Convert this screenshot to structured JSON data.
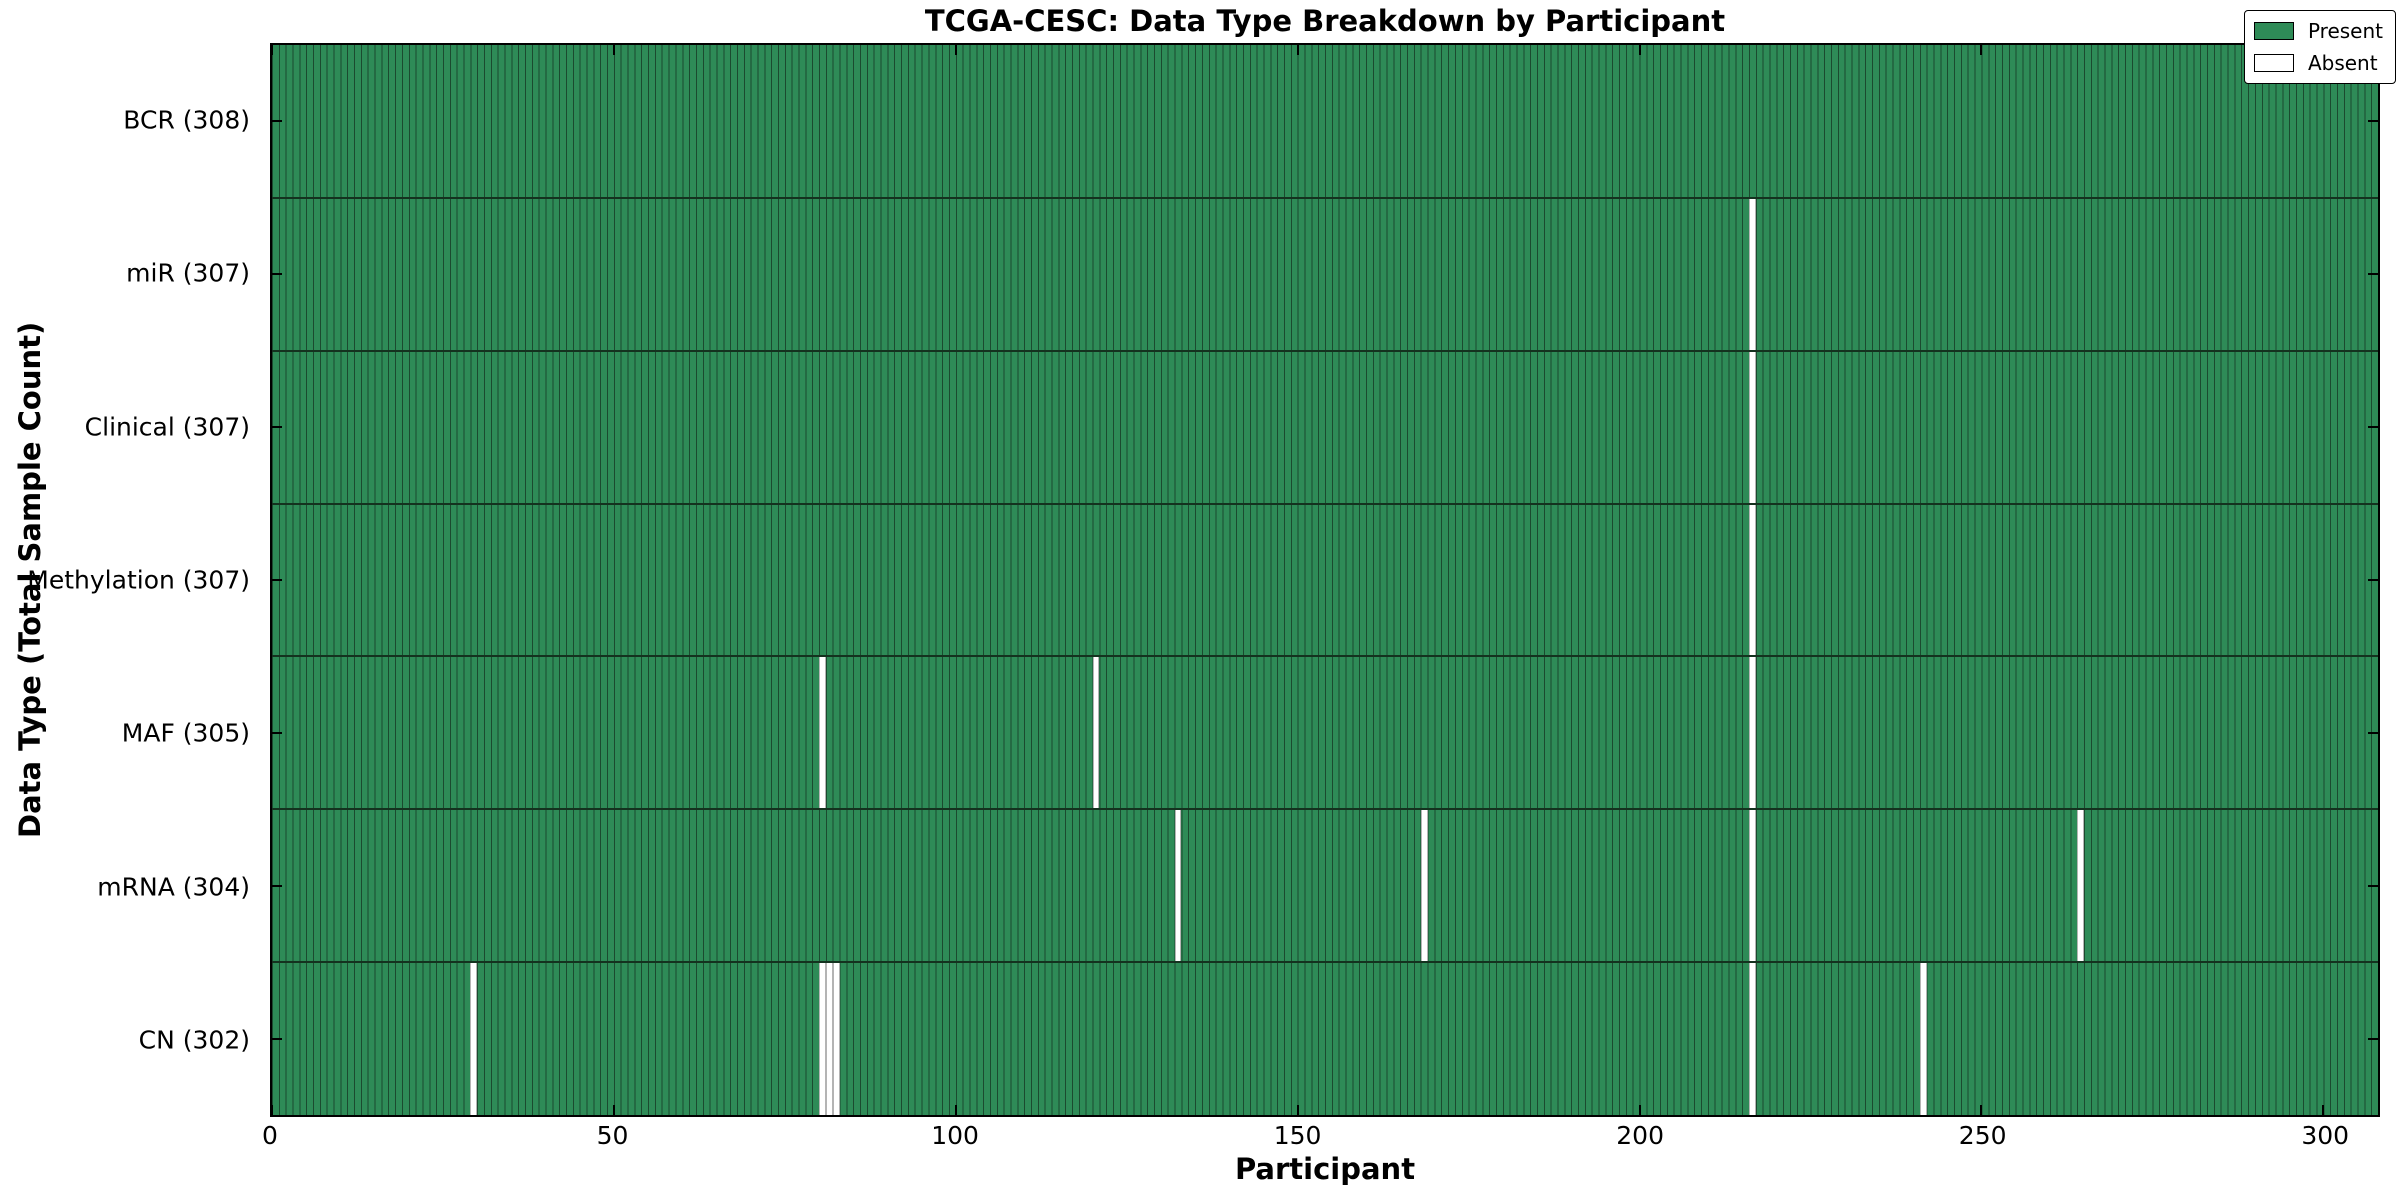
{
  "chart_data": {
    "type": "heatmap",
    "title": "TCGA-CESC: Data Type Breakdown by Participant",
    "xlabel": "Participant",
    "ylabel": "Data Type (Total Sample Count)",
    "x_ticks": [
      0,
      50,
      100,
      150,
      200,
      250,
      300
    ],
    "x_range": [
      0,
      308
    ],
    "n_participants": 308,
    "grid": false,
    "legend_position": "upper right",
    "legend": [
      {
        "label": "Present",
        "color": "#2e8b57"
      },
      {
        "label": "Absent",
        "color": "#ffffff"
      }
    ],
    "colors": {
      "present": "#2e8b57",
      "absent": "#ffffff",
      "column_edge": "#1b4a2f",
      "row_divider": "#14321f",
      "plot_border": "#000000"
    },
    "rows": [
      {
        "label": "BCR (308)",
        "data_type": "BCR",
        "total": 308,
        "absent_participants": []
      },
      {
        "label": "miR (307)",
        "data_type": "miR",
        "total": 307,
        "absent_participants": [
          216
        ]
      },
      {
        "label": "Clinical (307)",
        "data_type": "Clinical",
        "total": 307,
        "absent_participants": [
          216
        ]
      },
      {
        "label": "Methylation (307)",
        "data_type": "Methylation",
        "total": 307,
        "absent_participants": [
          216
        ]
      },
      {
        "label": "MAF (305)",
        "data_type": "MAF",
        "total": 305,
        "absent_participants": [
          80,
          120,
          216
        ]
      },
      {
        "label": "mRNA (304)",
        "data_type": "mRNA",
        "total": 304,
        "absent_participants": [
          132,
          168,
          216,
          264
        ]
      },
      {
        "label": "CN (302)",
        "data_type": "CN",
        "total": 302,
        "absent_participants": [
          29,
          80,
          81,
          82,
          216,
          241
        ]
      }
    ]
  }
}
